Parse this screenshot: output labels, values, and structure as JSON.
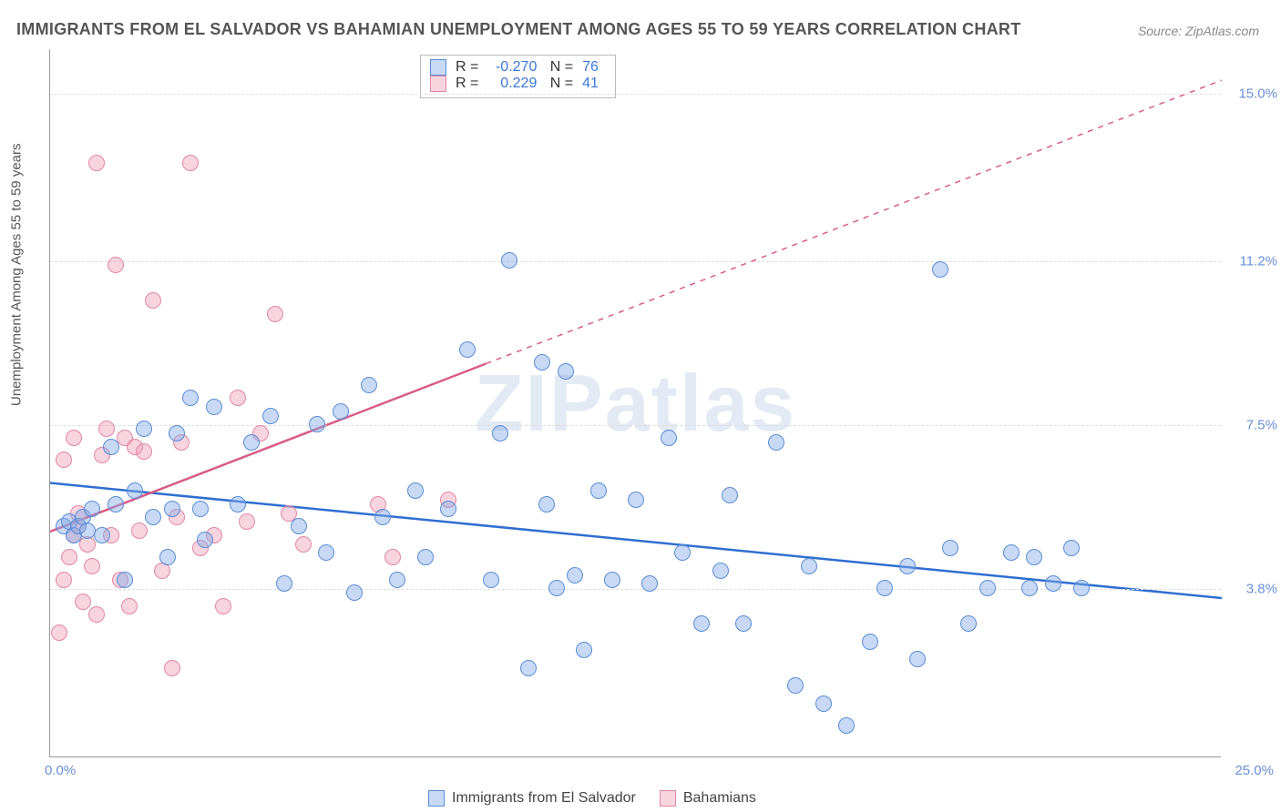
{
  "title": "IMMIGRANTS FROM EL SALVADOR VS BAHAMIAN UNEMPLOYMENT AMONG AGES 55 TO 59 YEARS CORRELATION CHART",
  "source": "Source: ZipAtlas.com",
  "watermark": "ZIPatlas",
  "ylabel": "Unemployment Among Ages 55 to 59 years",
  "chart": {
    "type": "scatter",
    "xlim": [
      0,
      25
    ],
    "ylim": [
      0,
      16
    ],
    "x_tick_left": "0.0%",
    "x_tick_right": "25.0%",
    "y_ticks": [
      {
        "v": 3.8,
        "label": "3.8%"
      },
      {
        "v": 7.5,
        "label": "7.5%"
      },
      {
        "v": 11.2,
        "label": "11.2%"
      },
      {
        "v": 15.0,
        "label": "15.0%"
      }
    ],
    "grid_color": "#dddddd",
    "background_color": "#ffffff",
    "marker_radius": 9,
    "marker_border_width": 1.2,
    "trend_line_width": 2.5,
    "dash_pattern": "6,6"
  },
  "series": [
    {
      "name": "Immigrants from El Salvador",
      "label": "Immigrants from El Salvador",
      "fill": "rgba(130,170,230,0.45)",
      "stroke": "#5b8dd6",
      "line_color": "#2f6fd0",
      "R": "-0.270",
      "N": "76",
      "trend": {
        "x1": 0,
        "y1": 6.2,
        "x2": 25,
        "y2": 3.6,
        "solid_until_x": 25
      },
      "points": [
        [
          0.3,
          5.2
        ],
        [
          0.4,
          5.3
        ],
        [
          0.5,
          5.0
        ],
        [
          0.6,
          5.2
        ],
        [
          0.7,
          5.4
        ],
        [
          0.8,
          5.1
        ],
        [
          0.9,
          5.6
        ],
        [
          1.1,
          5.0
        ],
        [
          1.3,
          7.0
        ],
        [
          1.4,
          5.7
        ],
        [
          1.6,
          4.0
        ],
        [
          1.8,
          6.0
        ],
        [
          2.0,
          7.4
        ],
        [
          2.2,
          5.4
        ],
        [
          2.5,
          4.5
        ],
        [
          2.6,
          5.6
        ],
        [
          2.7,
          7.3
        ],
        [
          3.0,
          8.1
        ],
        [
          3.2,
          5.6
        ],
        [
          3.3,
          4.9
        ],
        [
          3.5,
          7.9
        ],
        [
          4.0,
          5.7
        ],
        [
          4.3,
          7.1
        ],
        [
          4.7,
          7.7
        ],
        [
          5.0,
          3.9
        ],
        [
          5.3,
          5.2
        ],
        [
          5.7,
          7.5
        ],
        [
          5.9,
          4.6
        ],
        [
          6.2,
          7.8
        ],
        [
          6.5,
          3.7
        ],
        [
          6.8,
          8.4
        ],
        [
          7.1,
          5.4
        ],
        [
          7.4,
          4.0
        ],
        [
          7.8,
          6.0
        ],
        [
          8.0,
          4.5
        ],
        [
          8.5,
          5.6
        ],
        [
          8.9,
          9.2
        ],
        [
          9.4,
          4.0
        ],
        [
          9.6,
          7.3
        ],
        [
          9.8,
          11.2
        ],
        [
          10.2,
          2.0
        ],
        [
          10.5,
          8.9
        ],
        [
          10.6,
          5.7
        ],
        [
          10.8,
          3.8
        ],
        [
          11.0,
          8.7
        ],
        [
          11.2,
          4.1
        ],
        [
          11.4,
          2.4
        ],
        [
          11.7,
          6.0
        ],
        [
          12.0,
          4.0
        ],
        [
          12.5,
          5.8
        ],
        [
          12.8,
          3.9
        ],
        [
          13.2,
          7.2
        ],
        [
          13.5,
          4.6
        ],
        [
          13.9,
          3.0
        ],
        [
          14.3,
          4.2
        ],
        [
          14.5,
          5.9
        ],
        [
          14.8,
          3.0
        ],
        [
          15.5,
          7.1
        ],
        [
          15.9,
          1.6
        ],
        [
          16.2,
          4.3
        ],
        [
          16.5,
          1.2
        ],
        [
          17.0,
          0.7
        ],
        [
          17.5,
          2.6
        ],
        [
          17.8,
          3.8
        ],
        [
          18.3,
          4.3
        ],
        [
          18.5,
          2.2
        ],
        [
          19.0,
          11.0
        ],
        [
          19.2,
          4.7
        ],
        [
          19.6,
          3.0
        ],
        [
          20.0,
          3.8
        ],
        [
          20.5,
          4.6
        ],
        [
          20.9,
          3.8
        ],
        [
          21.0,
          4.5
        ],
        [
          21.4,
          3.9
        ],
        [
          21.8,
          4.7
        ],
        [
          22.0,
          3.8
        ]
      ]
    },
    {
      "name": "Bahamians",
      "label": "Bahamians",
      "fill": "rgba(240,160,185,0.45)",
      "stroke": "#e187a5",
      "line_color": "#d85d87",
      "R": "0.229",
      "N": "41",
      "trend": {
        "x1": 0,
        "y1": 5.1,
        "x2": 25,
        "y2": 15.3,
        "solid_until_x": 9.3
      },
      "points": [
        [
          0.2,
          2.8
        ],
        [
          0.3,
          4.0
        ],
        [
          0.4,
          4.5
        ],
        [
          0.5,
          5.0
        ],
        [
          0.6,
          5.2
        ],
        [
          0.7,
          3.5
        ],
        [
          0.8,
          4.8
        ],
        [
          0.3,
          6.7
        ],
        [
          0.5,
          7.2
        ],
        [
          0.6,
          5.5
        ],
        [
          0.9,
          4.3
        ],
        [
          1.0,
          3.2
        ],
        [
          1.1,
          6.8
        ],
        [
          1.2,
          7.4
        ],
        [
          1.3,
          5.0
        ],
        [
          1.4,
          11.1
        ],
        [
          1.5,
          4.0
        ],
        [
          1.6,
          7.2
        ],
        [
          1.7,
          3.4
        ],
        [
          1.0,
          13.4
        ],
        [
          1.8,
          7.0
        ],
        [
          1.9,
          5.1
        ],
        [
          2.0,
          6.9
        ],
        [
          2.2,
          10.3
        ],
        [
          2.4,
          4.2
        ],
        [
          2.6,
          2.0
        ],
        [
          2.7,
          5.4
        ],
        [
          2.8,
          7.1
        ],
        [
          3.0,
          13.4
        ],
        [
          3.2,
          4.7
        ],
        [
          3.5,
          5.0
        ],
        [
          3.7,
          3.4
        ],
        [
          4.0,
          8.1
        ],
        [
          4.2,
          5.3
        ],
        [
          4.5,
          7.3
        ],
        [
          4.8,
          10.0
        ],
        [
          5.1,
          5.5
        ],
        [
          5.4,
          4.8
        ],
        [
          7.0,
          5.7
        ],
        [
          7.3,
          4.5
        ],
        [
          8.5,
          5.8
        ]
      ]
    }
  ],
  "legend_bottom": [
    "Immigrants from El Salvador",
    "Bahamians"
  ]
}
